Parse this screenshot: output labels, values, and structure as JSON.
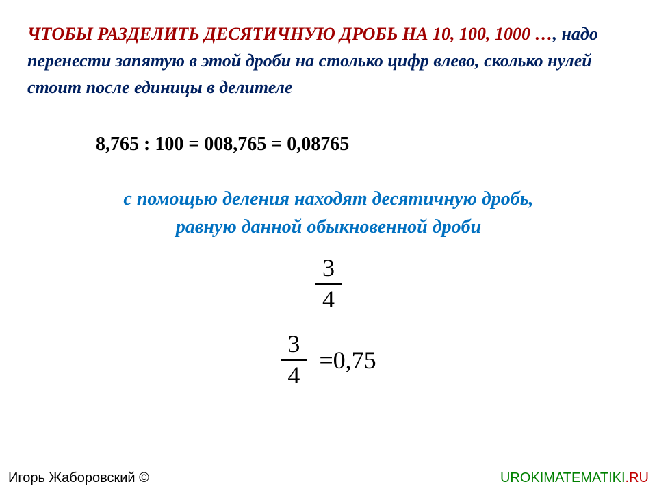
{
  "rule": {
    "red_part": "ЧТОБЫ РАЗДЕЛИТЬ ДЕСЯТИЧНУЮ ДРОБЬ НА 10, 100, 1000 …",
    "navy_part": ", надо перенести запятую в этой дроби на столько цифр влево, сколько нулей стоит после единицы в делителе"
  },
  "example_line": "8,765 : 100 = 008,765 = 0,08765",
  "blue_rule": {
    "line1": "с помощью деления находят десятичную дробь,",
    "line2": "равную данной обыкновенной дроби"
  },
  "fraction1": {
    "num": "3",
    "den": "4"
  },
  "fraction2": {
    "num": "3",
    "den": "4",
    "equals": "=0,75"
  },
  "footer": {
    "author": "Игорь Жаборовский ©",
    "site_green": "UROKIMATEMATIKI",
    "site_red": ".RU"
  },
  "colors": {
    "red": "#a00000",
    "navy": "#002060",
    "blue": "#0070c0",
    "green": "#008000",
    "site_red": "#c00000",
    "black": "#000000",
    "bg": "#ffffff"
  }
}
